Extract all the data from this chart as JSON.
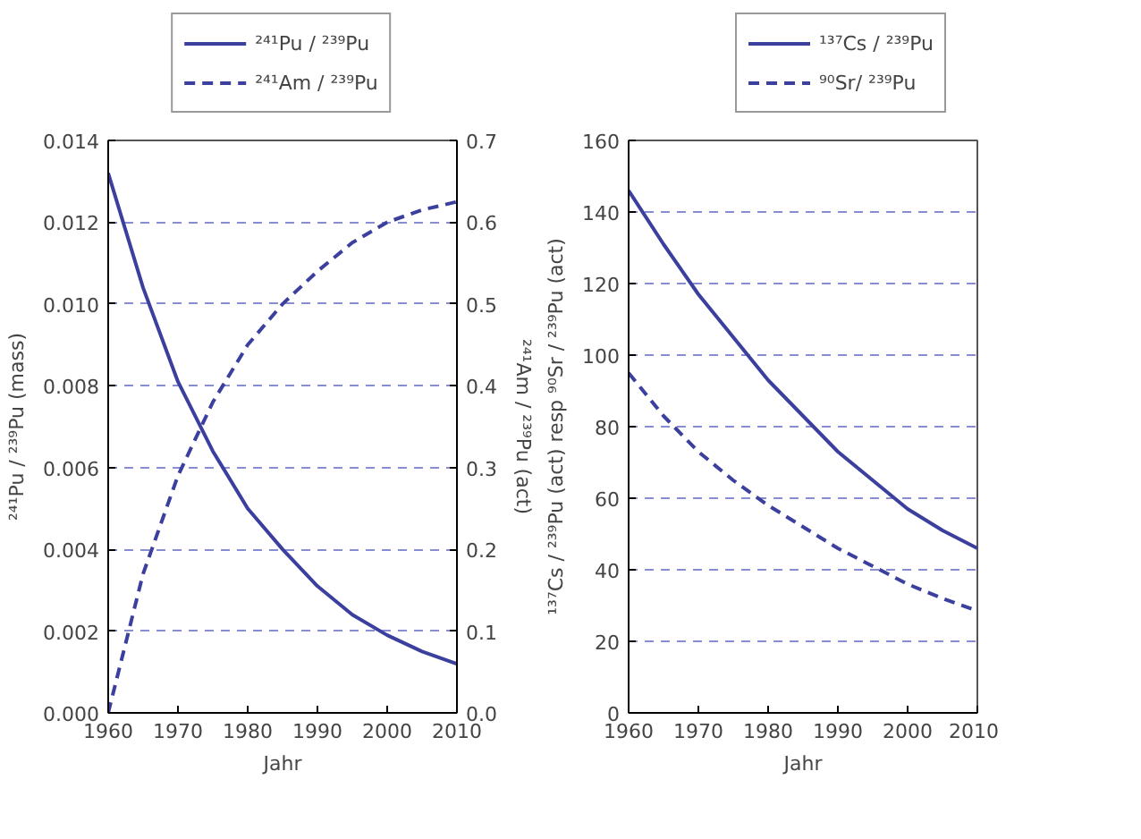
{
  "chart_data": [
    {
      "type": "line",
      "xlabel": "Jahr",
      "ylabel": "²⁴¹Pu / ²³⁹Pu (mass)",
      "y2label": "²⁴¹Am / ²³⁹Pu (act)",
      "x": [
        1960,
        1965,
        1970,
        1975,
        1980,
        1985,
        1990,
        1995,
        2000,
        2005,
        2010
      ],
      "xlim": [
        1960,
        2010
      ],
      "xticks": [
        1960,
        1970,
        1980,
        1990,
        2000,
        2010
      ],
      "ylim": [
        0,
        0.014
      ],
      "yticks": [
        {
          "value": 0,
          "label": "0.000"
        },
        {
          "value": 0.002,
          "label": "0.002"
        },
        {
          "value": 0.004,
          "label": "0.004"
        },
        {
          "value": 0.006,
          "label": "0.006"
        },
        {
          "value": 0.008,
          "label": "0.008"
        },
        {
          "value": 0.01,
          "label": "0.010"
        },
        {
          "value": 0.012,
          "label": "0.012"
        },
        {
          "value": 0.014,
          "label": "0.014"
        }
      ],
      "y2lim": [
        0,
        0.7
      ],
      "y2ticks": [
        {
          "value": 0,
          "label": "0.0"
        },
        {
          "value": 0.1,
          "label": "0.1"
        },
        {
          "value": 0.2,
          "label": "0.2"
        },
        {
          "value": 0.3,
          "label": "0.3"
        },
        {
          "value": 0.4,
          "label": "0.4"
        },
        {
          "value": 0.5,
          "label": "0.5"
        },
        {
          "value": 0.6,
          "label": "0.6"
        },
        {
          "value": 0.7,
          "label": "0.7"
        }
      ],
      "grid": "y",
      "legend": "top",
      "series": [
        {
          "name": "²⁴¹Pu / ²³⁹Pu",
          "color": "#3b3f9e",
          "line_style": "solid",
          "values": [
            0.0132,
            0.0104,
            0.0081,
            0.0064,
            0.005,
            0.004,
            0.0031,
            0.0024,
            0.0019,
            0.0015,
            0.0012
          ]
        },
        {
          "name": "²⁴¹Am / ²³⁹Pu",
          "color": "#3b3f9e",
          "line_style": "dashed",
          "axis": "y2",
          "values": [
            0,
            0.17,
            0.29,
            0.38,
            0.45,
            0.5,
            0.54,
            0.575,
            0.6,
            0.615,
            0.625
          ]
        }
      ]
    },
    {
      "type": "line",
      "xlabel": "Jahr",
      "ylabel": "¹³⁷Cs / ²³⁹Pu (act) resp ⁹⁰Sr / ²³⁹Pu (act)",
      "x": [
        1960,
        1965,
        1970,
        1975,
        1980,
        1985,
        1990,
        1995,
        2000,
        2005,
        2010
      ],
      "xlim": [
        1960,
        2010
      ],
      "xticks": [
        1960,
        1970,
        1980,
        1990,
        2000,
        2010
      ],
      "ylim": [
        0,
        160
      ],
      "yticks": [
        0,
        20,
        40,
        60,
        80,
        100,
        120,
        140,
        160
      ],
      "grid": "y",
      "legend": "top",
      "series": [
        {
          "name": "¹³⁷Cs / ²³⁹Pu",
          "color": "#3b3f9e",
          "line_style": "solid",
          "values": [
            146,
            131,
            117,
            105,
            93,
            83,
            73,
            65,
            57,
            51,
            46
          ]
        },
        {
          "name": "⁹⁰Sr/ ²³⁹Pu",
          "color": "#3b3f9e",
          "line_style": "dashed",
          "values": [
            95,
            83,
            73,
            65,
            58,
            52,
            46,
            41,
            36,
            32,
            28.5
          ]
        }
      ]
    }
  ]
}
